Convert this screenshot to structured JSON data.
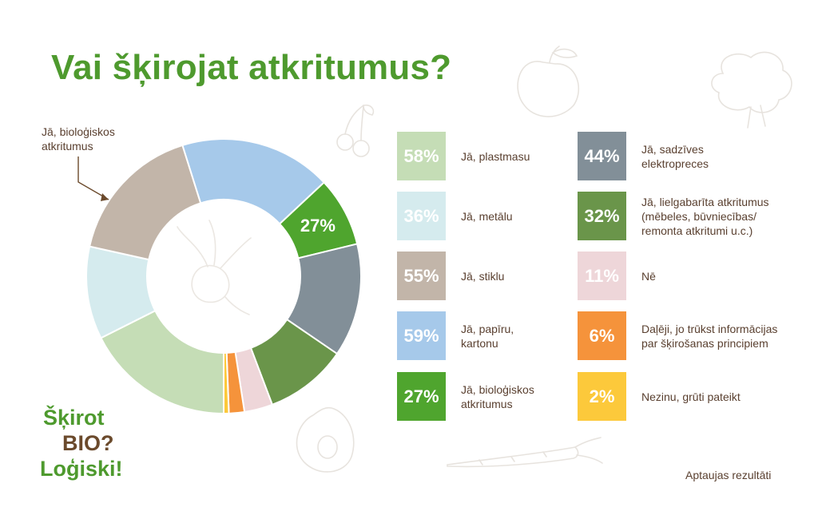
{
  "title": "Vai šķirojat atkritumus?",
  "callout": {
    "line1": "Jā, bioloģiskos",
    "line2": "atkritumus"
  },
  "logo": {
    "line1": "Šķirot",
    "line2": "BIO?",
    "line3": "Loģiski!"
  },
  "footer": "Aptaujas rezultāti",
  "legend": [
    {
      "value": "58%",
      "label": "Jā, plastmasu",
      "color": "#c5ddb6"
    },
    {
      "value": "36%",
      "label": "Jā, metālu",
      "color": "#d5ebee"
    },
    {
      "value": "55%",
      "label": "Jā, stiklu",
      "color": "#c2b5a9"
    },
    {
      "value": "59%",
      "label": "Jā, papīru, kartonu",
      "color": "#a6c9ea"
    },
    {
      "value": "27%",
      "label": "Jā, bioloģiskos atkritumus",
      "color": "#4fa52e"
    },
    {
      "value": "44%",
      "label": "Jā, sadzīves elektropreces",
      "color": "#828f98"
    },
    {
      "value": "32%",
      "label": "Jā, lielgabarīta atkritumus (mēbeles, būvniecības/ remonta atkritumi u.c.)",
      "color": "#6a954a"
    },
    {
      "value": "11%",
      "label": "Nē",
      "color": "#eed6d9"
    },
    {
      "value": "6%",
      "label": "Daļēji, jo trūkst informācijas par šķirošanas principiem",
      "color": "#f5933b"
    },
    {
      "value": "2%",
      "label": "Nezinu, grūti pateikt",
      "color": "#fcc93b"
    }
  ],
  "chart_data": {
    "type": "pie",
    "title": "Vai šķirojat atkritumus?",
    "categories": [
      "Jā, plastmasu",
      "Jā, metālu",
      "Jā, stiklu",
      "Jā, papīru, kartonu",
      "Jā, bioloģiskos atkritumus",
      "Jā, sadzīves elektropreces",
      "Jā, lielgabarīta atkritumus (mēbeles, būvniecības/ remonta atkritumi u.c.)",
      "Nē",
      "Daļēji, jo trūkst informācijas par šķirošanas principiem",
      "Nezinu, grūti pateikt"
    ],
    "values": [
      58,
      36,
      55,
      59,
      27,
      44,
      32,
      11,
      6,
      2
    ],
    "colors": [
      "#c5ddb6",
      "#d5ebee",
      "#c2b5a9",
      "#a6c9ea",
      "#4fa52e",
      "#828f98",
      "#6a954a",
      "#eed6d9",
      "#f5933b",
      "#fcc93b"
    ],
    "labeled_value": "27%",
    "legend": "right"
  }
}
